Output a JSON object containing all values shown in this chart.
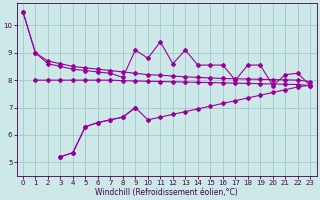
{
  "xlabel": "Windchill (Refroidissement éolien,°C)",
  "background_color": "#cce8e8",
  "grid_color": "#aacccc",
  "line_color": "#990099",
  "xlim": [
    -0.5,
    23.5
  ],
  "ylim": [
    4.5,
    10.8
  ],
  "yticks": [
    5,
    6,
    7,
    8,
    9,
    10
  ],
  "xticks": [
    0,
    1,
    2,
    3,
    4,
    5,
    6,
    7,
    8,
    9,
    10,
    11,
    12,
    13,
    14,
    15,
    16,
    17,
    18,
    19,
    20,
    21,
    22,
    23
  ],
  "series": [
    {
      "x": [
        0,
        1,
        2,
        3,
        4,
        5,
        6,
        7,
        8,
        9,
        10,
        11,
        12,
        13,
        14,
        15,
        16,
        17,
        18,
        19,
        20,
        21,
        22,
        23
      ],
      "y": [
        10.5,
        9.0,
        8.7,
        8.6,
        8.5,
        8.45,
        8.4,
        8.35,
        8.3,
        8.25,
        8.2,
        8.18,
        8.15,
        8.12,
        8.1,
        8.08,
        8.06,
        8.05,
        8.04,
        8.03,
        8.02,
        8.01,
        8.0,
        7.95
      ]
    },
    {
      "x": [
        1,
        2,
        3,
        4,
        5,
        6,
        7,
        8,
        9,
        10,
        11,
        12,
        13,
        14,
        15,
        16,
        17,
        18,
        19,
        20,
        21,
        22,
        23
      ],
      "y": [
        8.0,
        8.0,
        8.0,
        8.0,
        8.0,
        8.0,
        8.0,
        7.98,
        7.97,
        7.96,
        7.95,
        7.94,
        7.93,
        7.92,
        7.91,
        7.9,
        7.89,
        7.88,
        7.87,
        7.86,
        7.85,
        7.84,
        7.8
      ]
    },
    {
      "x": [
        0,
        1,
        2,
        3,
        4,
        5,
        6,
        7,
        8,
        9,
        10,
        11,
        12,
        13,
        14,
        15,
        16,
        17,
        18,
        19,
        20,
        21,
        22,
        23
      ],
      "y": [
        10.5,
        9.0,
        8.6,
        8.5,
        8.4,
        8.35,
        8.3,
        8.25,
        8.1,
        9.1,
        8.8,
        9.4,
        8.6,
        9.1,
        8.55,
        8.55,
        8.55,
        8.0,
        8.55,
        8.55,
        7.8,
        8.2,
        8.25,
        7.8
      ]
    },
    {
      "x": [
        3,
        4,
        5,
        6,
        7,
        8,
        9,
        10,
        11,
        12,
        13,
        14,
        15,
        16,
        17,
        18,
        19,
        20,
        21,
        22,
        23
      ],
      "y": [
        5.2,
        5.35,
        6.3,
        6.45,
        6.55,
        6.65,
        7.0,
        6.55,
        6.65,
        6.75,
        6.85,
        6.95,
        7.05,
        7.15,
        7.25,
        7.35,
        7.45,
        7.55,
        7.65,
        7.75,
        7.82
      ]
    },
    {
      "x": [
        3,
        4,
        5,
        6,
        7,
        8,
        9
      ],
      "y": [
        5.2,
        5.35,
        6.3,
        6.45,
        6.55,
        6.65,
        7.0
      ]
    }
  ]
}
